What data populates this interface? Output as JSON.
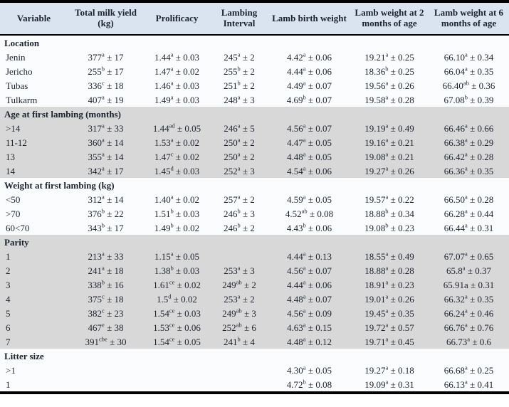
{
  "table": {
    "colors": {
      "header_bg": "#dae3f0",
      "band_gray": "#d8d8d8",
      "band_light": "#fbfcfe",
      "text": "#1c2330",
      "border": "#000000"
    },
    "columns": [
      "Variable",
      "Total milk yield (kg)",
      "Prolificacy",
      "Lambing Interval",
      "Lamb birth weight",
      "Lamb weight at 2 months of age",
      "Lamb weight at 6 months of age"
    ],
    "sections": [
      {
        "label": "Location",
        "shade": "light",
        "rows": [
          {
            "variable": "Jenin",
            "cells": [
              "377^{a} ± 17",
              "1.44^{a} ± 0.03",
              "245^{a} ± 2",
              "4.42^{a} ± 0.06",
              "19.21^{a} ± 0.25",
              "66.10^{a} ± 0.34"
            ]
          },
          {
            "variable": "Jericho",
            "cells": [
              "255^{b} ± 17",
              "1.47^{a} ± 0.02",
              "255^{b} ± 2",
              "4.44^{a} ± 0.06",
              "18.36^{b} ± 0.25",
              "66.04^{a} ± 0.35"
            ]
          },
          {
            "variable": "Tubas",
            "cells": [
              "336^{c} ± 18",
              "1.46^{a} ± 0.03",
              "251^{b} ± 2",
              "4.49^{a} ± 0.07",
              "19.56^{a} ± 0.26",
              "66.40^{ab} ± 0.36"
            ]
          },
          {
            "variable": "Tulkarm",
            "cells": [
              "407^{a} ± 19",
              "1.49^{a} ± 0.03",
              "248^{a} ± 3",
              "4.69^{b} ± 0.07",
              "19.58^{a} ± 0.28",
              "67.08^{b} ± 0.39"
            ]
          }
        ]
      },
      {
        "label": "Age at first lambing (months)",
        "shade": "gray",
        "rows": [
          {
            "variable": ">14",
            "cells": [
              "317^{a} ± 33",
              "1.44^{ad} ± 0.05",
              "246^{a} ± 5",
              "4.56^{a} ± 0.07",
              "19.19^{a} ± 0.49",
              "66.46^{a} ± 0.66"
            ]
          },
          {
            "variable": "11-12",
            "cells": [
              "360^{a} ± 14",
              "1.53^{a} ± 0.02",
              "250^{a} ± 2",
              "4.47^{a} ± 0.05",
              "19.16^{a} ± 0.21",
              "66.38^{a} ± 0.29"
            ]
          },
          {
            "variable": "13",
            "cells": [
              "355^{a} ± 14",
              "1.47^{c} ± 0.02",
              "250^{a} ± 2",
              "4.48^{a} ± 0.05",
              "19.08^{a} ± 0.21",
              "66.42^{a} ± 0.28"
            ]
          },
          {
            "variable": "14",
            "cells": [
              "342^{a} ± 17",
              "1.45^{d} ± 0.03",
              "252^{a} ± 3",
              "4.54^{a} ± 0.06",
              "19.27^{a} ± 0.26",
              "66.36^{a} ± 0.35"
            ]
          }
        ]
      },
      {
        "label": "Weight at first lambing (kg)",
        "shade": "light",
        "rows": [
          {
            "variable": "<50",
            "cells": [
              "312^{a} ± 14",
              "1.40^{a} ± 0.02",
              "257^{a} ± 2",
              "4.59^{a} ± 0.05",
              "19.57^{a} ± 0.22",
              "66.50^{a} ± 0.28"
            ]
          },
          {
            "variable": ">70",
            "cells": [
              "376^{b} ± 22",
              "1.51^{b} ± 0.03",
              "246^{b} ± 3",
              "4.52^{ab} ± 0.08",
              "18.88^{b} ± 0.34",
              "66.28^{a} ± 0.44"
            ]
          },
          {
            "variable": "60<70",
            "cells": [
              "343^{b} ± 17",
              "1.49^{b} ± 0.02",
              "246^{b} ± 2",
              "4.43^{b} ± 0.06",
              "19.08^{b} ± 0.23",
              "66.44^{a} ± 0.31"
            ]
          }
        ]
      },
      {
        "label": "Parity",
        "shade": "gray",
        "rows": [
          {
            "variable": "1",
            "cells": [
              "213^{a} ± 33",
              "1.15^{a} ± 0.05",
              "",
              "4.44^{a} ± 0.13",
              "18.55^{a} ± 0.49",
              "67.07^{a} ± 0.65"
            ]
          },
          {
            "variable": "2",
            "cells": [
              "241^{a} ± 18",
              "1.38^{b} ± 0.03",
              "253^{a} ± 3",
              "4.56^{a} ± 0.07",
              "18.88^{a} ± 0.28",
              "65.8^{a} ± 0.37"
            ]
          },
          {
            "variable": "3",
            "cells": [
              "338^{b} ± 16",
              "1.61^{ce} ± 0.02",
              "249^{ab} ± 2",
              "4.44^{a} ± 0.06",
              "18.91^{a} ± 0.23",
              "65.91a ± 0.31"
            ]
          },
          {
            "variable": "4",
            "cells": [
              "375^{c} ± 18",
              "1.5^{d} ± 0.02",
              "253^{a} ± 2",
              "4.48^{a} ± 0.07",
              "19.01^{a} ± 0.26",
              "66.32^{a} ± 0.35"
            ]
          },
          {
            "variable": "5",
            "cells": [
              "382^{c} ± 23",
              "1.54^{ce} ± 0.03",
              "249^{ab} ± 3",
              "4.56^{a} ± 0.09",
              "19.45^{a} ± 0.35",
              "66.24^{a} ± 0.46"
            ]
          },
          {
            "variable": "6",
            "cells": [
              "467^{e} ± 38",
              "1.53^{ce} ± 0.06",
              "252^{ab} ± 6",
              "4.63^{a} ± 0.15",
              "19.72^{a} ± 0.57",
              "66.76^{a} ± 0.76"
            ]
          },
          {
            "variable": "7",
            "cells": [
              "391^{cbe} ± 30",
              "1.54^{ce} ± 0.05",
              "241^{b} ± 4",
              "4.48^{a} ± 0.12",
              "19.71^{a} ± 0.45",
              "66.73^{a} ± 0.6"
            ]
          }
        ]
      },
      {
        "label": "Litter size",
        "shade": "light",
        "rows": [
          {
            "variable": ">1",
            "cells": [
              "",
              "",
              "",
              "4.30^{a} ± 0.05",
              "19.27^{a} ± 0.18",
              "66.68^{a} ± 0.25"
            ]
          },
          {
            "variable": "1",
            "cells": [
              "",
              "",
              "",
              "4.72^{b} ± 0.08",
              "19.09^{a} ± 0.31",
              "66.13^{a} ± 0.41"
            ]
          }
        ]
      }
    ]
  }
}
